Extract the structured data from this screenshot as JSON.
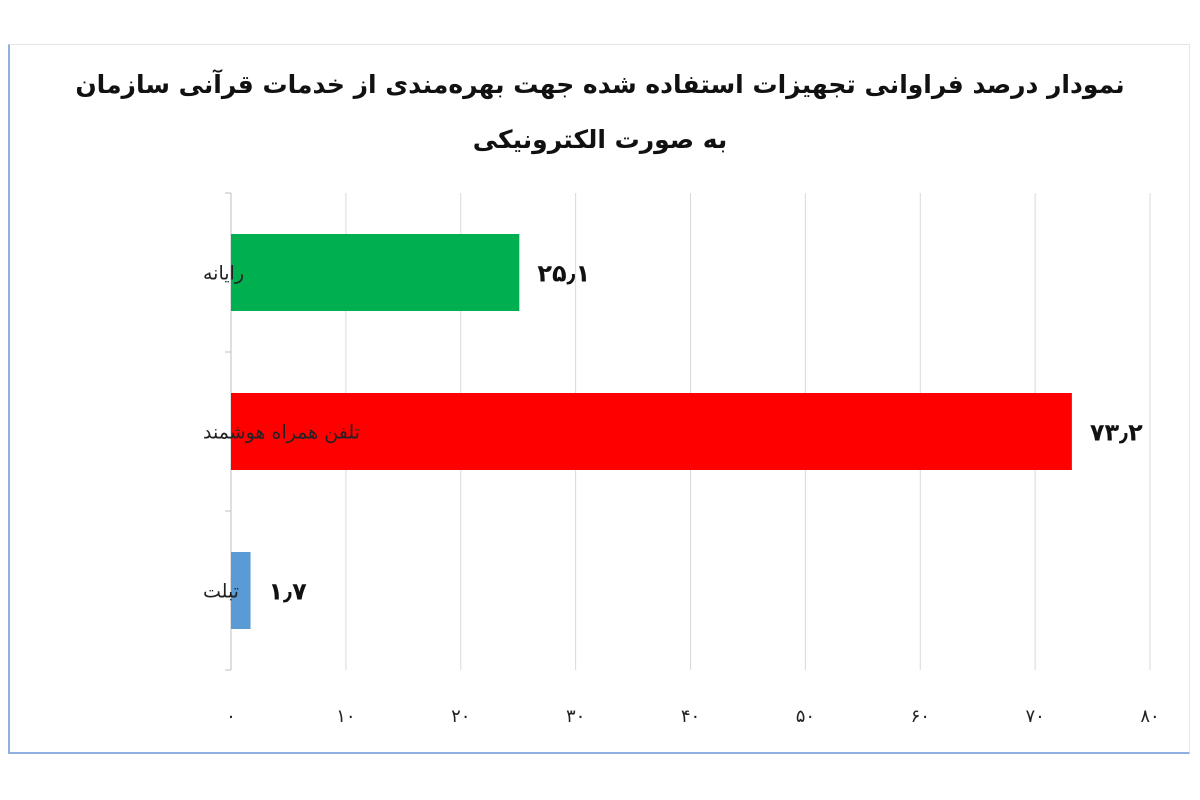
{
  "chart_data": {
    "type": "bar",
    "orientation": "horizontal",
    "title": "نمودار درصد فراوانی تجهیزات استفاده شده جهت بهره‌مندی از خدمات قرآنی سازمان",
    "subtitle": "به صورت الکترونیکی",
    "categories": [
      "رایانه",
      "تلفن همراه هوشمند",
      "تبلت"
    ],
    "values": [
      25.1,
      73.2,
      1.7
    ],
    "data_labels": [
      "۲۵٫۱",
      "۷۳٫۲",
      "۱٫۷"
    ],
    "colors": [
      "#00b050",
      "#ff0000",
      "#5b9bd5"
    ],
    "xlim": [
      0,
      80
    ],
    "x_ticks": [
      0,
      10,
      20,
      30,
      40,
      50,
      60,
      70,
      80
    ],
    "x_tick_labels": [
      "۰",
      "۱۰",
      "۲۰",
      "۳۰",
      "۴۰",
      "۵۰",
      "۶۰",
      "۷۰",
      "۸۰"
    ],
    "grid": true,
    "legend": "none"
  }
}
